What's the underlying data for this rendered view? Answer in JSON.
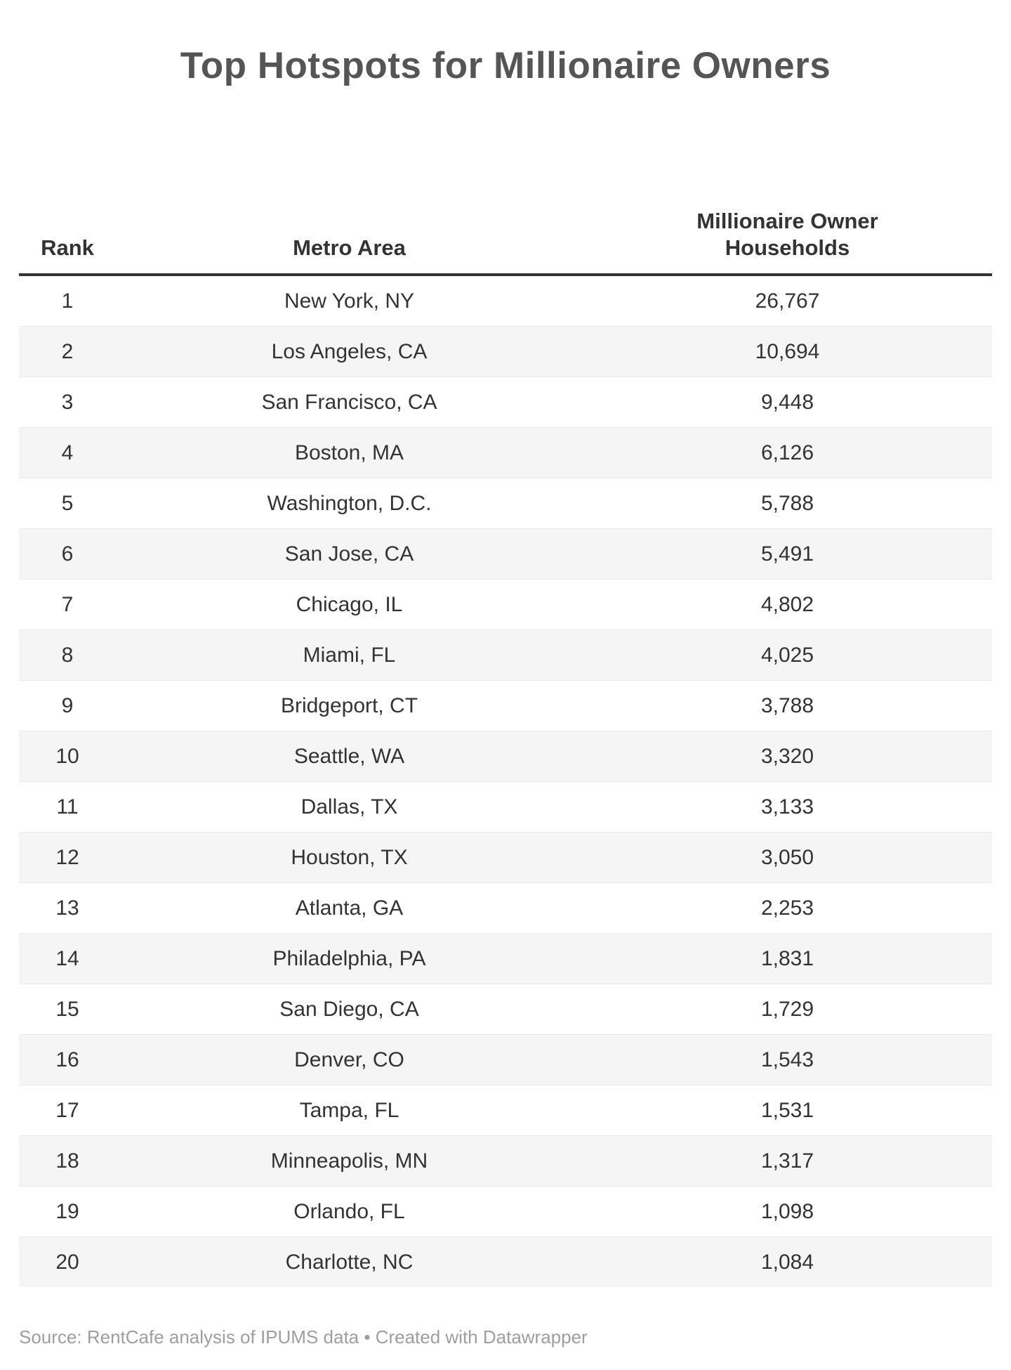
{
  "title": "Top Hotspots for Millionaire Owners",
  "table": {
    "columns": [
      "Rank",
      "Metro Area",
      "Millionaire Owner Households"
    ],
    "rows": [
      {
        "rank": "1",
        "metro": "New York, NY",
        "households": "26,767"
      },
      {
        "rank": "2",
        "metro": "Los Angeles, CA",
        "households": "10,694"
      },
      {
        "rank": "3",
        "metro": "San Francisco, CA",
        "households": "9,448"
      },
      {
        "rank": "4",
        "metro": "Boston, MA",
        "households": "6,126"
      },
      {
        "rank": "5",
        "metro": "Washington, D.C.",
        "households": "5,788"
      },
      {
        "rank": "6",
        "metro": "San Jose, CA",
        "households": "5,491"
      },
      {
        "rank": "7",
        "metro": "Chicago, IL",
        "households": "4,802"
      },
      {
        "rank": "8",
        "metro": "Miami, FL",
        "households": "4,025"
      },
      {
        "rank": "9",
        "metro": "Bridgeport, CT",
        "households": "3,788"
      },
      {
        "rank": "10",
        "metro": "Seattle, WA",
        "households": "3,320"
      },
      {
        "rank": "11",
        "metro": "Dallas, TX",
        "households": "3,133"
      },
      {
        "rank": "12",
        "metro": "Houston, TX",
        "households": "3,050"
      },
      {
        "rank": "13",
        "metro": "Atlanta, GA",
        "households": "2,253"
      },
      {
        "rank": "14",
        "metro": "Philadelphia, PA",
        "households": "1,831"
      },
      {
        "rank": "15",
        "metro": "San Diego, CA",
        "households": "1,729"
      },
      {
        "rank": "16",
        "metro": "Denver, CO",
        "households": "1,543"
      },
      {
        "rank": "17",
        "metro": "Tampa, FL",
        "households": "1,531"
      },
      {
        "rank": "18",
        "metro": "Minneapolis, MN",
        "households": "1,317"
      },
      {
        "rank": "19",
        "metro": "Orlando, FL",
        "households": "1,098"
      },
      {
        "rank": "20",
        "metro": "Charlotte, NC",
        "households": "1,084"
      }
    ]
  },
  "footer": {
    "source": "Source: RentCafe analysis of IPUMS data • Created with Datawrapper"
  },
  "colors": {
    "title_text": "#555555",
    "body_text": "#333333",
    "header_rule": "#333333",
    "zebra_row": "#f5f5f5",
    "row_separator": "#e9e9e9",
    "footer_text": "#9e9e9e",
    "background": "#ffffff"
  },
  "chart_data": {
    "type": "table",
    "title": "Top Hotspots for Millionaire Owners",
    "columns": [
      "Rank",
      "Metro Area",
      "Millionaire Owner Households"
    ],
    "rows": [
      [
        1,
        "New York, NY",
        26767
      ],
      [
        2,
        "Los Angeles, CA",
        10694
      ],
      [
        3,
        "San Francisco, CA",
        9448
      ],
      [
        4,
        "Boston, MA",
        6126
      ],
      [
        5,
        "Washington, D.C.",
        5788
      ],
      [
        6,
        "San Jose, CA",
        5491
      ],
      [
        7,
        "Chicago, IL",
        4802
      ],
      [
        8,
        "Miami, FL",
        4025
      ],
      [
        9,
        "Bridgeport, CT",
        3788
      ],
      [
        10,
        "Seattle, WA",
        3320
      ],
      [
        11,
        "Dallas, TX",
        3133
      ],
      [
        12,
        "Houston, TX",
        3050
      ],
      [
        13,
        "Atlanta, GA",
        2253
      ],
      [
        14,
        "Philadelphia, PA",
        1831
      ],
      [
        15,
        "San Diego, CA",
        1729
      ],
      [
        16,
        "Denver, CO",
        1543
      ],
      [
        17,
        "Tampa, FL",
        1531
      ],
      [
        18,
        "Minneapolis, MN",
        1317
      ],
      [
        19,
        "Orlando, FL",
        1098
      ],
      [
        20,
        "Charlotte, NC",
        1084
      ]
    ],
    "source": "Source: RentCafe analysis of IPUMS data • Created with Datawrapper",
    "layout": {
      "zebra_striping": true,
      "header_rule": true,
      "cell_alignment": "center"
    }
  }
}
